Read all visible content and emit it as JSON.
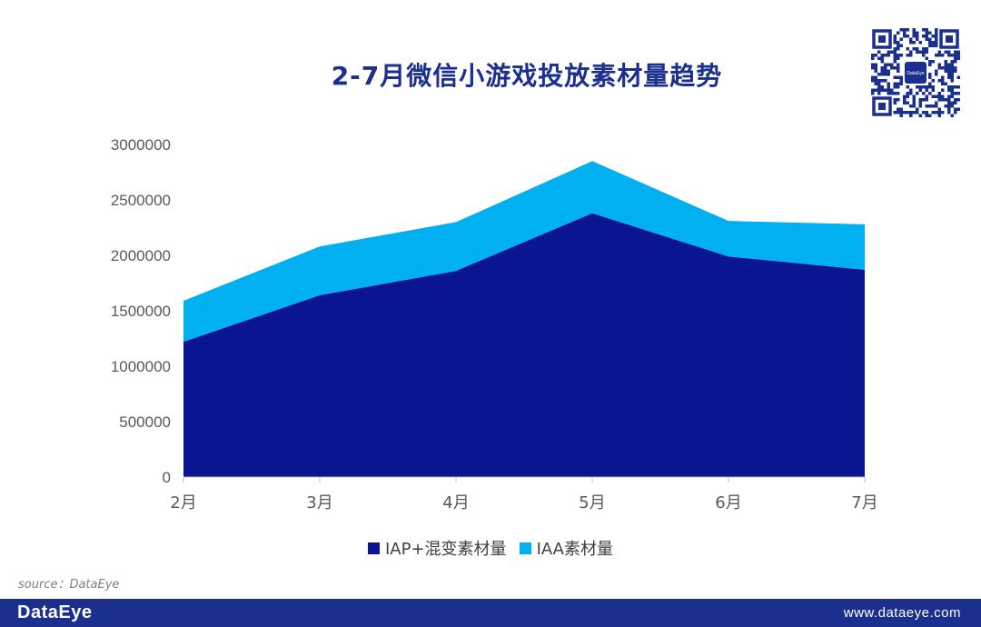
{
  "title": "2-7月微信小游戏投放素材量趋势",
  "source": "source：DataEye",
  "footer": {
    "logo": "DataEye",
    "url": "www.dataeye.com",
    "bar_color": "#1b2f8f"
  },
  "qr_code": {
    "icon": "qr-code-icon",
    "center_label": "DataEye"
  },
  "chart_data": {
    "type": "area",
    "stacked": true,
    "title": "2-7月微信小游戏投放素材量趋势",
    "categories": [
      "2月",
      "3月",
      "4月",
      "5月",
      "6月",
      "7月"
    ],
    "series": [
      {
        "name": "IAP+混变素材量",
        "values": [
          1220000,
          1640000,
          1860000,
          2380000,
          1990000,
          1870000
        ],
        "color": "#0a1691"
      },
      {
        "name": "IAA素材量",
        "values": [
          370000,
          440000,
          440000,
          470000,
          320000,
          410000
        ],
        "color": "#00b0f0"
      }
    ],
    "y_ticks": [
      "0",
      "500000",
      "1000000",
      "1500000",
      "2000000",
      "2500000",
      "3000000"
    ],
    "ylim": [
      0,
      3000000
    ],
    "grid": false,
    "legend_position": "bottom"
  }
}
